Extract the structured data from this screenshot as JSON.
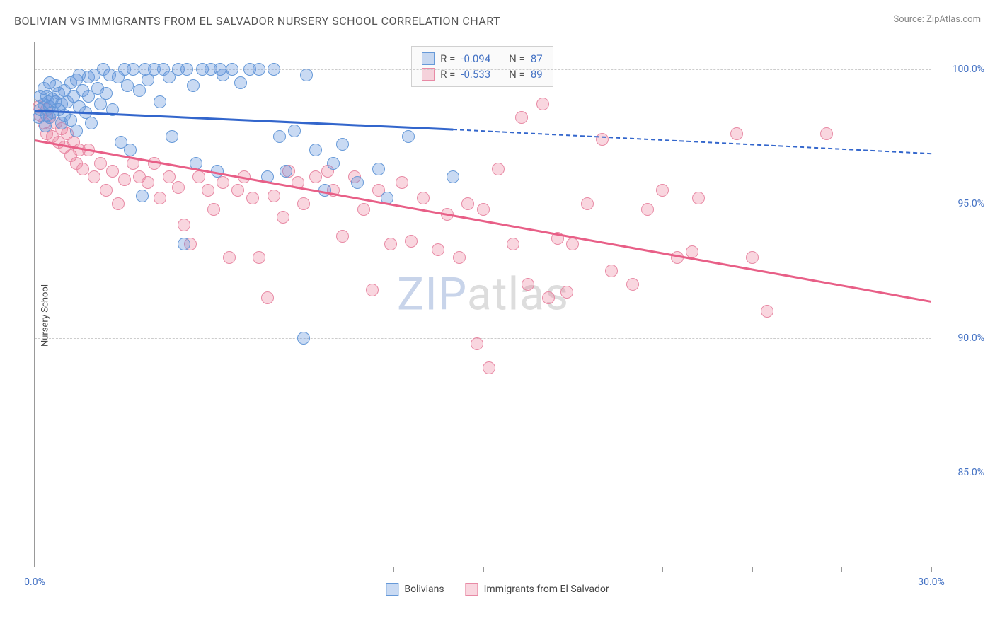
{
  "title": "BOLIVIAN VS IMMIGRANTS FROM EL SALVADOR NURSERY SCHOOL CORRELATION CHART",
  "source": "Source: ZipAtlas.com",
  "watermark_zip": "ZIP",
  "watermark_atlas": "atlas",
  "y_axis_label": "Nursery School",
  "x_axis": {
    "min": 0.0,
    "max": 30.0,
    "tick_positions": [
      0,
      3,
      6,
      9,
      12,
      15,
      18,
      21,
      24,
      27,
      30
    ],
    "tick_labels_shown": {
      "0": "0.0%",
      "30": "30.0%"
    }
  },
  "y_axis": {
    "min": 81.5,
    "max": 101.0,
    "ticks": [
      {
        "v": 85.0,
        "label": "85.0%"
      },
      {
        "v": 90.0,
        "label": "90.0%"
      },
      {
        "v": 95.0,
        "label": "95.0%"
      },
      {
        "v": 100.0,
        "label": "100.0%"
      }
    ]
  },
  "colors": {
    "series1_fill": "rgba(100,150,220,0.35)",
    "series1_stroke": "#6699d8",
    "series1_line": "#3366cc",
    "series2_fill": "rgba(235,120,150,0.30)",
    "series2_stroke": "#e88aa5",
    "series2_line": "#e85f87",
    "grid": "#cccccc",
    "axis": "#999999",
    "tick_text": "#4472c4"
  },
  "marker_radius": 9,
  "stats_legend": {
    "rows": [
      {
        "swatch_fill": "rgba(100,150,220,0.35)",
        "swatch_stroke": "#6699d8",
        "r_label": "R =",
        "r_val": "-0.094",
        "n_label": "N =",
        "n_val": "87"
      },
      {
        "swatch_fill": "rgba(235,120,150,0.30)",
        "swatch_stroke": "#e88aa5",
        "r_label": "R =",
        "r_val": "-0.533",
        "n_label": "N =",
        "n_val": "89"
      }
    ]
  },
  "series_legend": {
    "items": [
      {
        "swatch_fill": "rgba(100,150,220,0.35)",
        "swatch_stroke": "#6699d8",
        "label": "Bolivians"
      },
      {
        "swatch_fill": "rgba(235,120,150,0.30)",
        "swatch_stroke": "#e88aa5",
        "label": "Immigrants from El Salvador"
      }
    ]
  },
  "trendlines": {
    "series1": {
      "solid_x0": 0.0,
      "solid_y0": 98.5,
      "solid_x1": 14.0,
      "solid_y1": 97.8,
      "dash_x1": 30.0,
      "dash_y1": 96.9,
      "color": "#3366cc"
    },
    "series2": {
      "solid_x0": 0.0,
      "solid_y0": 97.4,
      "solid_x1": 30.0,
      "solid_y1": 91.4,
      "color": "#e85f87"
    }
  },
  "series1_points": [
    [
      0.2,
      98.5
    ],
    [
      0.3,
      98.7
    ],
    [
      0.4,
      98.3
    ],
    [
      0.4,
      99.0
    ],
    [
      0.5,
      98.6
    ],
    [
      0.5,
      98.2
    ],
    [
      0.6,
      98.9
    ],
    [
      0.6,
      98.4
    ],
    [
      0.7,
      98.8
    ],
    [
      0.7,
      99.4
    ],
    [
      0.8,
      98.5
    ],
    [
      0.8,
      99.1
    ],
    [
      0.9,
      98.0
    ],
    [
      0.9,
      98.7
    ],
    [
      1.0,
      99.2
    ],
    [
      1.0,
      98.3
    ],
    [
      1.1,
      98.8
    ],
    [
      1.2,
      99.5
    ],
    [
      1.2,
      98.1
    ],
    [
      1.3,
      99.0
    ],
    [
      1.4,
      97.7
    ],
    [
      1.4,
      99.6
    ],
    [
      1.5,
      98.6
    ],
    [
      1.5,
      99.8
    ],
    [
      1.6,
      99.2
    ],
    [
      1.7,
      98.4
    ],
    [
      1.8,
      99.7
    ],
    [
      1.8,
      99.0
    ],
    [
      1.9,
      98.0
    ],
    [
      2.0,
      99.8
    ],
    [
      2.1,
      99.3
    ],
    [
      2.2,
      98.7
    ],
    [
      2.3,
      100.0
    ],
    [
      2.4,
      99.1
    ],
    [
      2.5,
      99.8
    ],
    [
      2.6,
      98.5
    ],
    [
      2.8,
      99.7
    ],
    [
      2.9,
      97.3
    ],
    [
      3.0,
      100.0
    ],
    [
      3.1,
      99.4
    ],
    [
      3.2,
      97.0
    ],
    [
      3.3,
      100.0
    ],
    [
      3.5,
      99.2
    ],
    [
      3.6,
      95.3
    ],
    [
      3.7,
      100.0
    ],
    [
      3.8,
      99.6
    ],
    [
      4.0,
      100.0
    ],
    [
      4.2,
      98.8
    ],
    [
      4.3,
      100.0
    ],
    [
      4.5,
      99.7
    ],
    [
      4.6,
      97.5
    ],
    [
      4.8,
      100.0
    ],
    [
      5.0,
      93.5
    ],
    [
      5.1,
      100.0
    ],
    [
      5.3,
      99.4
    ],
    [
      5.4,
      96.5
    ],
    [
      5.6,
      100.0
    ],
    [
      5.9,
      100.0
    ],
    [
      6.1,
      96.2
    ],
    [
      6.2,
      100.0
    ],
    [
      6.3,
      99.8
    ],
    [
      6.6,
      100.0
    ],
    [
      6.9,
      99.5
    ],
    [
      7.2,
      100.0
    ],
    [
      7.5,
      100.0
    ],
    [
      7.8,
      96.0
    ],
    [
      8.0,
      100.0
    ],
    [
      8.2,
      97.5
    ],
    [
      8.4,
      96.2
    ],
    [
      8.7,
      97.7
    ],
    [
      9.0,
      90.0
    ],
    [
      9.1,
      99.8
    ],
    [
      9.4,
      97.0
    ],
    [
      9.7,
      95.5
    ],
    [
      10.0,
      96.5
    ],
    [
      10.3,
      97.2
    ],
    [
      10.8,
      95.8
    ],
    [
      11.5,
      96.3
    ],
    [
      11.8,
      95.2
    ],
    [
      12.5,
      97.5
    ],
    [
      14.0,
      96.0
    ],
    [
      0.3,
      99.3
    ],
    [
      0.5,
      99.5
    ],
    [
      0.15,
      98.2
    ],
    [
      0.2,
      99.0
    ],
    [
      0.35,
      97.9
    ],
    [
      0.45,
      98.8
    ]
  ],
  "series2_points": [
    [
      0.2,
      98.3
    ],
    [
      0.3,
      98.0
    ],
    [
      0.4,
      98.5
    ],
    [
      0.4,
      97.6
    ],
    [
      0.5,
      98.2
    ],
    [
      0.6,
      97.5
    ],
    [
      0.7,
      98.0
    ],
    [
      0.8,
      97.3
    ],
    [
      0.9,
      97.8
    ],
    [
      1.0,
      97.1
    ],
    [
      1.1,
      97.6
    ],
    [
      1.2,
      96.8
    ],
    [
      1.3,
      97.3
    ],
    [
      1.4,
      96.5
    ],
    [
      1.5,
      97.0
    ],
    [
      1.6,
      96.3
    ],
    [
      1.8,
      97.0
    ],
    [
      2.0,
      96.0
    ],
    [
      2.2,
      96.5
    ],
    [
      2.4,
      95.5
    ],
    [
      2.6,
      96.2
    ],
    [
      2.8,
      95.0
    ],
    [
      3.0,
      95.9
    ],
    [
      3.3,
      96.5
    ],
    [
      3.5,
      96.0
    ],
    [
      3.8,
      95.8
    ],
    [
      4.0,
      96.5
    ],
    [
      4.2,
      95.2
    ],
    [
      4.5,
      96.0
    ],
    [
      4.8,
      95.6
    ],
    [
      5.0,
      94.2
    ],
    [
      5.2,
      93.5
    ],
    [
      5.5,
      96.0
    ],
    [
      5.8,
      95.5
    ],
    [
      6.0,
      94.8
    ],
    [
      6.3,
      95.8
    ],
    [
      6.5,
      93.0
    ],
    [
      6.8,
      95.5
    ],
    [
      7.0,
      96.0
    ],
    [
      7.3,
      95.2
    ],
    [
      7.5,
      93.0
    ],
    [
      7.8,
      91.5
    ],
    [
      8.0,
      95.3
    ],
    [
      8.3,
      94.5
    ],
    [
      8.5,
      96.2
    ],
    [
      8.8,
      95.8
    ],
    [
      9.0,
      95.0
    ],
    [
      9.4,
      96.0
    ],
    [
      9.8,
      96.2
    ],
    [
      10.0,
      95.5
    ],
    [
      10.3,
      93.8
    ],
    [
      10.7,
      96.0
    ],
    [
      11.0,
      94.8
    ],
    [
      11.3,
      91.8
    ],
    [
      11.5,
      95.5
    ],
    [
      11.9,
      93.5
    ],
    [
      12.3,
      95.8
    ],
    [
      12.6,
      93.6
    ],
    [
      13.0,
      95.2
    ],
    [
      13.5,
      93.3
    ],
    [
      13.8,
      94.6
    ],
    [
      14.2,
      93.0
    ],
    [
      14.5,
      95.0
    ],
    [
      14.8,
      89.8
    ],
    [
      15.0,
      94.8
    ],
    [
      15.2,
      88.9
    ],
    [
      15.5,
      96.3
    ],
    [
      16.0,
      93.5
    ],
    [
      16.3,
      98.2
    ],
    [
      16.5,
      92.0
    ],
    [
      17.0,
      98.7
    ],
    [
      17.2,
      91.5
    ],
    [
      17.5,
      93.7
    ],
    [
      17.8,
      91.7
    ],
    [
      18.0,
      93.5
    ],
    [
      18.5,
      95.0
    ],
    [
      19.0,
      97.4
    ],
    [
      19.3,
      92.5
    ],
    [
      20.0,
      92.0
    ],
    [
      20.5,
      94.8
    ],
    [
      21.0,
      95.5
    ],
    [
      21.5,
      93.0
    ],
    [
      22.0,
      93.2
    ],
    [
      22.2,
      95.2
    ],
    [
      23.5,
      97.6
    ],
    [
      24.0,
      93.0
    ],
    [
      24.5,
      91.0
    ],
    [
      26.5,
      97.6
    ],
    [
      0.15,
      98.6
    ]
  ]
}
